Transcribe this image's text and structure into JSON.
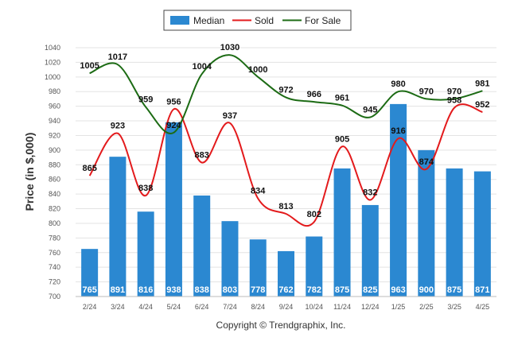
{
  "chart_data": {
    "type": "bar",
    "categories": [
      "2/24",
      "3/24",
      "4/24",
      "5/24",
      "6/24",
      "7/24",
      "8/24",
      "9/24",
      "10/24",
      "11/24",
      "12/24",
      "1/25",
      "2/25",
      "3/25",
      "4/25"
    ],
    "ylabel": "Price (in $,000)",
    "ylim": [
      700,
      1040
    ],
    "yticks": [
      700,
      720,
      740,
      760,
      780,
      800,
      820,
      840,
      860,
      880,
      900,
      920,
      940,
      960,
      980,
      1000,
      1020,
      1040
    ],
    "grid": true,
    "legend_position": "top-center",
    "series": [
      {
        "name": "Median",
        "kind": "bar",
        "color": "#2b88d1",
        "values": [
          765,
          891,
          816,
          938,
          838,
          803,
          778,
          762,
          782,
          875,
          825,
          963,
          900,
          875,
          871
        ]
      },
      {
        "name": "Sold",
        "kind": "line",
        "color": "#e31a1c",
        "values": [
          865,
          923,
          838,
          956,
          883,
          937,
          834,
          813,
          802,
          905,
          832,
          916,
          874,
          958,
          952
        ]
      },
      {
        "name": "For Sale",
        "kind": "line",
        "color": "#1c6b14",
        "values": [
          1005,
          1017,
          959,
          924,
          1004,
          1030,
          1000,
          972,
          966,
          961,
          945,
          980,
          970,
          970,
          981
        ]
      }
    ]
  },
  "copyright": "Copyright © Trendgraphix, Inc."
}
